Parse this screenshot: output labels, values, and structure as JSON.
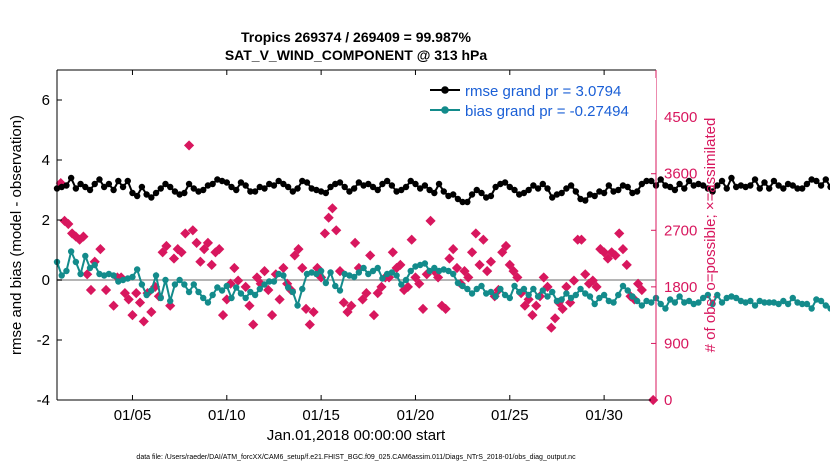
{
  "chart_data": {
    "type": "line",
    "title": "Tropics 269374 / 269409 = 99.987%",
    "subtitle": "SAT_V_WIND_COMPONENT @ 313 hPa",
    "xlabel": "Jan.01,2018 00:00:00 start",
    "ylabel": "rmse and bias (model - observation)",
    "y2label": "# of obs: o=possible; ×=assimilated",
    "footnote": "data file: /Users/raeder/DAI/ATM_forcXX/CAM6_setup/f.e21.FHIST_BGC.f09_025.CAM6assim.011/Diags_NTrS_2018-01/obs_diag_output.nc",
    "xlim": [
      1.0,
      32.75
    ],
    "ylim": [
      -4,
      7
    ],
    "y2lim": [
      0,
      5250
    ],
    "x_ticks": [
      5,
      10,
      15,
      20,
      25,
      30
    ],
    "x_tick_labels": [
      "01/05",
      "01/10",
      "01/15",
      "01/20",
      "01/25",
      "01/30"
    ],
    "y_ticks": [
      -4,
      -2,
      0,
      2,
      4,
      6
    ],
    "y_tick_labels": [
      "-4",
      "-2",
      "0",
      "2",
      "4",
      "6"
    ],
    "y2_ticks": [
      0,
      900,
      1800,
      2700,
      3600,
      4500
    ],
    "y2_tick_labels": [
      "0",
      "900",
      "1800",
      "2700",
      "3600",
      "4500"
    ],
    "zero_line": 0,
    "legend_position": "top-right",
    "x_step_days": 0.25,
    "series": [
      {
        "name": "rmse grand pr = 3.0794",
        "color": "#000000",
        "axis": "left",
        "marker": "circle",
        "values": [
          3.05,
          3.1,
          3.15,
          3.4,
          3.05,
          3.2,
          3.1,
          3.0,
          3.2,
          3.35,
          3.1,
          3.2,
          3.0,
          3.3,
          3.1,
          3.3,
          2.9,
          2.8,
          3.1,
          2.85,
          2.75,
          2.9,
          3.05,
          3.2,
          3.1,
          2.95,
          2.85,
          2.9,
          3.2,
          3.05,
          2.95,
          3.0,
          3.15,
          3.2,
          3.35,
          3.3,
          3.25,
          3.1,
          3.0,
          3.25,
          3.15,
          2.95,
          2.95,
          3.1,
          3.05,
          3.2,
          3.15,
          3.3,
          3.2,
          3.1,
          2.95,
          3.05,
          3.3,
          3.25,
          3.05,
          3.0,
          2.95,
          2.9,
          3.1,
          3.2,
          3.25,
          3.1,
          2.95,
          3.05,
          3.25,
          3.15,
          3.2,
          3.1,
          3.0,
          3.2,
          3.3,
          3.15,
          2.95,
          3.0,
          3.1,
          3.3,
          3.2,
          3.05,
          3.15,
          3.0,
          2.9,
          3.2,
          2.95,
          2.8,
          2.85,
          2.7,
          2.6,
          2.6,
          2.85,
          3.0,
          2.9,
          2.75,
          2.8,
          3.1,
          3.2,
          3.25,
          3.1,
          3.0,
          2.85,
          2.9,
          3.0,
          3.15,
          3.05,
          3.2,
          3.05,
          2.75,
          2.85,
          2.9,
          3.05,
          3.15,
          2.95,
          2.7,
          2.65,
          2.85,
          2.8,
          2.95,
          2.9,
          3.15,
          2.95,
          3.0,
          3.15,
          3.1,
          2.9,
          2.95,
          3.2,
          3.3,
          3.3,
          3.15,
          3.35,
          3.15,
          3.1,
          3.0,
          3.2,
          3.05,
          3.3,
          3.15,
          3.2,
          3.15,
          3.05,
          2.95,
          3.15,
          3.3,
          3.05,
          3.4,
          3.1,
          3.15,
          3.1,
          3.15,
          3.35,
          3.05,
          3.25,
          3.05,
          3.3,
          3.15,
          3.05,
          3.2,
          3.15,
          3.05,
          3.05,
          3.2,
          3.35,
          3.3,
          3.15,
          3.35,
          3.1,
          3.3,
          3.25,
          3.4,
          3.3,
          3.2,
          3.3,
          3.45,
          3.4,
          3.75,
          3.9,
          3.6,
          3.3,
          3.45,
          3.55,
          3.3,
          3.1,
          3.2,
          3.25,
          3.15,
          3.2,
          3.1,
          3.05,
          3.35,
          3.1,
          3.05,
          3.2,
          3.05,
          2.95,
          3.5,
          3.35,
          3.3,
          3.05,
          3.25,
          2.9,
          2.75,
          2.8,
          2.95,
          3.0,
          2.95,
          2.9,
          3.05
        ]
      },
      {
        "name": "bias grand pr = -0.27494",
        "color": "#138b8b",
        "axis": "left",
        "marker": "circle",
        "values": [
          0.6,
          0.15,
          0.3,
          0.95,
          0.6,
          0.2,
          0.8,
          0.4,
          0.5,
          0.2,
          0.15,
          0.2,
          0.15,
          -0.05,
          0.0,
          0.05,
          0.1,
          0.35,
          -0.15,
          -0.5,
          -0.35,
          0.15,
          -0.6,
          0.0,
          -0.7,
          -0.15,
          0.0,
          -0.15,
          -0.4,
          -0.15,
          -0.4,
          -0.6,
          -0.75,
          -0.5,
          -0.25,
          -0.35,
          -0.2,
          -0.6,
          -0.25,
          -0.45,
          -0.6,
          -0.4,
          -0.5,
          -0.3,
          -0.15,
          -0.05,
          -0.05,
          0.2,
          0.15,
          -0.25,
          -0.4,
          -0.85,
          -0.3,
          0.2,
          0.25,
          0.2,
          0.3,
          -0.1,
          0.25,
          -0.2,
          -0.35,
          0.2,
          0.15,
          0.1,
          0.25,
          0.4,
          0.2,
          0.3,
          0.4,
          0.05,
          0.2,
          0.25,
          0.15,
          -0.15,
          0.0,
          0.3,
          0.45,
          0.5,
          0.55,
          0.3,
          0.4,
          0.3,
          0.35,
          0.3,
          0.2,
          -0.1,
          -0.2,
          -0.3,
          -0.45,
          -0.3,
          -0.2,
          -0.45,
          -0.4,
          -0.55,
          -0.3,
          -0.5,
          -0.6,
          -0.2,
          -0.4,
          -0.3,
          -0.5,
          -0.3,
          -0.55,
          -0.35,
          -0.55,
          -0.4,
          -0.7,
          -0.65,
          -0.45,
          -0.6,
          -0.5,
          -0.3,
          -0.45,
          -0.55,
          -0.8,
          -0.6,
          -0.5,
          -0.7,
          -0.75,
          -0.5,
          -0.2,
          -0.35,
          -0.55,
          -0.7,
          -0.85,
          -0.7,
          -0.75,
          -0.6,
          -0.8,
          -0.95,
          -0.65,
          -0.75,
          -0.55,
          -0.75,
          -0.7,
          -0.8,
          -0.75,
          -0.6,
          -0.5,
          -0.8,
          -0.5,
          -0.75,
          -0.6,
          -0.55,
          -0.6,
          -0.7,
          -0.75,
          -0.7,
          -0.85,
          -0.7,
          -0.75,
          -0.75,
          -0.75,
          -0.8,
          -0.7,
          -0.8,
          -0.6,
          -0.75,
          -0.8,
          -0.8,
          -0.95,
          -0.65,
          -0.7,
          -0.85,
          -0.95,
          -0.8,
          -0.95,
          -0.75,
          -0.8,
          -0.6,
          -0.8,
          -0.8,
          -0.55,
          -1.0,
          -0.65,
          -0.55,
          -0.35,
          -0.8,
          -0.4,
          -0.2,
          -0.7,
          -0.55,
          -0.8,
          -0.3,
          -0.4,
          -0.7,
          -0.85,
          -0.6,
          -0.65,
          -0.5,
          -0.3,
          -0.55,
          -0.65,
          -0.45,
          -0.4,
          -0.25,
          -0.45,
          -0.55,
          0.0,
          -0.5,
          -0.45,
          -0.05,
          -0.2,
          0.0,
          0.3,
          0.25,
          0.15,
          0.45
        ]
      }
    ],
    "obs_series": {
      "name": "# of obs",
      "color": "#d8175e",
      "axis": "right",
      "marker": "x",
      "points": [
        [
          1.2,
          3450
        ],
        [
          1.4,
          2850
        ],
        [
          1.6,
          2800
        ],
        [
          1.8,
          2650
        ],
        [
          2.0,
          2600
        ],
        [
          2.2,
          2550
        ],
        [
          2.4,
          2600
        ],
        [
          2.6,
          2000
        ],
        [
          2.8,
          1750
        ],
        [
          3.0,
          2200
        ],
        [
          3.3,
          2400
        ],
        [
          3.6,
          1750
        ],
        [
          4.0,
          1500
        ],
        [
          4.2,
          1950
        ],
        [
          4.4,
          1950
        ],
        [
          4.6,
          1700
        ],
        [
          4.8,
          1600
        ],
        [
          5.0,
          1350
        ],
        [
          5.2,
          1700
        ],
        [
          5.4,
          1550
        ],
        [
          5.6,
          1250
        ],
        [
          5.8,
          1700
        ],
        [
          6.0,
          1400
        ],
        [
          6.2,
          1800
        ],
        [
          6.4,
          1650
        ],
        [
          6.6,
          2350
        ],
        [
          6.8,
          2450
        ],
        [
          7.0,
          1500
        ],
        [
          7.2,
          2250
        ],
        [
          7.4,
          2400
        ],
        [
          7.6,
          2350
        ],
        [
          7.8,
          2650
        ],
        [
          8.2,
          2700
        ],
        [
          8.4,
          2500
        ],
        [
          8.6,
          2200
        ],
        [
          8.8,
          2400
        ],
        [
          9.0,
          2500
        ],
        [
          9.2,
          2150
        ],
        [
          9.4,
          2350
        ],
        [
          9.6,
          2400
        ],
        [
          9.8,
          1350
        ],
        [
          10.0,
          1600
        ],
        [
          10.2,
          1850
        ],
        [
          10.4,
          2100
        ],
        [
          10.6,
          1900
        ],
        [
          11.0,
          1800
        ],
        [
          11.2,
          1500
        ],
        [
          11.4,
          1200
        ],
        [
          11.6,
          1950
        ],
        [
          11.8,
          1850
        ],
        [
          12.0,
          2050
        ],
        [
          12.2,
          1750
        ],
        [
          12.4,
          1350
        ],
        [
          12.6,
          2000
        ],
        [
          12.8,
          1600
        ],
        [
          13.0,
          2100
        ],
        [
          13.2,
          1850
        ],
        [
          13.4,
          1750
        ],
        [
          13.6,
          2300
        ],
        [
          13.8,
          2400
        ],
        [
          14.0,
          2100
        ],
        [
          14.2,
          1450
        ],
        [
          14.4,
          1200
        ],
        [
          14.6,
          1400
        ],
        [
          14.8,
          2100
        ],
        [
          15.0,
          1950
        ],
        [
          15.2,
          2650
        ],
        [
          15.4,
          2900
        ],
        [
          15.6,
          3050
        ],
        [
          15.8,
          2700
        ],
        [
          16.0,
          2050
        ],
        [
          16.2,
          1550
        ],
        [
          16.4,
          1400
        ],
        [
          16.6,
          1500
        ],
        [
          16.8,
          2500
        ],
        [
          17.0,
          2100
        ],
        [
          17.2,
          1600
        ],
        [
          17.4,
          1700
        ],
        [
          17.6,
          2300
        ],
        [
          17.8,
          1350
        ],
        [
          18.0,
          1700
        ],
        [
          18.2,
          1800
        ],
        [
          18.4,
          1950
        ],
        [
          18.6,
          1950
        ],
        [
          18.8,
          2350
        ],
        [
          19.0,
          2100
        ],
        [
          19.2,
          2150
        ],
        [
          19.4,
          1750
        ],
        [
          19.6,
          1800
        ],
        [
          19.8,
          2550
        ],
        [
          20.0,
          1950
        ],
        [
          20.2,
          1850
        ],
        [
          20.4,
          1450
        ],
        [
          20.6,
          2000
        ],
        [
          20.8,
          2850
        ],
        [
          21.0,
          2050
        ],
        [
          21.2,
          1950
        ],
        [
          21.4,
          1500
        ],
        [
          21.6,
          1450
        ],
        [
          21.8,
          2250
        ],
        [
          22.0,
          2400
        ],
        [
          22.2,
          2100
        ],
        [
          22.4,
          1850
        ],
        [
          22.6,
          2050
        ],
        [
          22.8,
          1950
        ],
        [
          23.0,
          2350
        ],
        [
          23.2,
          2650
        ],
        [
          23.4,
          2150
        ],
        [
          23.6,
          2550
        ],
        [
          23.8,
          2050
        ],
        [
          24.0,
          2200
        ],
        [
          24.2,
          1650
        ],
        [
          24.4,
          1750
        ],
        [
          24.6,
          2350
        ],
        [
          24.8,
          2450
        ],
        [
          25.0,
          2150
        ],
        [
          25.2,
          2050
        ],
        [
          25.4,
          1950
        ],
        [
          25.6,
          1700
        ],
        [
          25.8,
          1500
        ],
        [
          26.0,
          1600
        ],
        [
          26.2,
          1350
        ],
        [
          26.4,
          1500
        ],
        [
          26.6,
          1650
        ],
        [
          26.8,
          1950
        ],
        [
          27.0,
          1800
        ],
        [
          27.2,
          1150
        ],
        [
          27.4,
          1300
        ],
        [
          27.6,
          1550
        ],
        [
          27.8,
          1450
        ],
        [
          28.0,
          1800
        ],
        [
          28.2,
          1550
        ],
        [
          28.4,
          1900
        ],
        [
          28.6,
          2550
        ],
        [
          28.8,
          2550
        ],
        [
          29.0,
          2000
        ],
        [
          29.2,
          1850
        ],
        [
          29.4,
          1900
        ],
        [
          29.6,
          1800
        ],
        [
          29.8,
          2400
        ],
        [
          30.0,
          2350
        ],
        [
          30.2,
          2250
        ],
        [
          30.4,
          2350
        ],
        [
          30.6,
          2300
        ],
        [
          30.8,
          2650
        ],
        [
          31.0,
          2400
        ],
        [
          31.2,
          2150
        ],
        [
          31.4,
          1650
        ],
        [
          31.6,
          1600
        ],
        [
          31.8,
          1850
        ],
        [
          32.0,
          1750
        ],
        [
          8.0,
          4050
        ],
        [
          32.6,
          0
        ]
      ]
    }
  }
}
